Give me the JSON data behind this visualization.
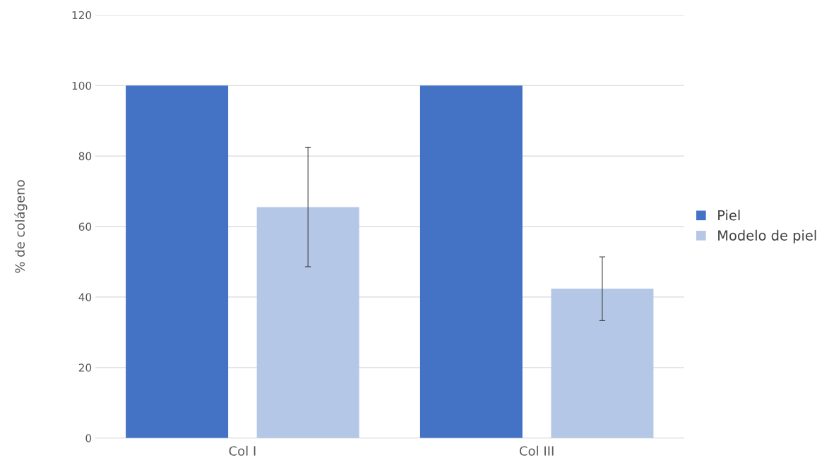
{
  "chart_data": {
    "type": "bar",
    "ylabel": "% de colágeno",
    "categories": [
      "Col I",
      "Col III"
    ],
    "series": [
      {
        "name": "Piel",
        "color": "#4472c4",
        "values": [
          100,
          100
        ]
      },
      {
        "name": "Modelo de piel",
        "color": "#b4c7e7",
        "values": [
          65.5,
          42.4
        ],
        "errors": [
          [
            48.6,
            82.5
          ],
          [
            33.3,
            51.4
          ]
        ]
      }
    ],
    "ylim": [
      0,
      120
    ],
    "yticks": [
      0,
      20,
      40,
      60,
      80,
      100,
      120
    ],
    "grid": "y",
    "legend": "right"
  }
}
